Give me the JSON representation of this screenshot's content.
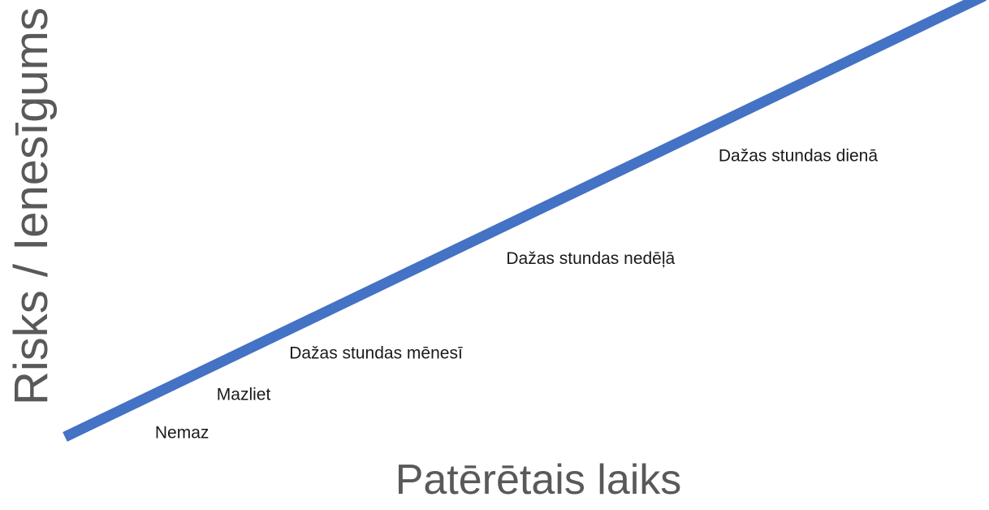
{
  "chart_data": {
    "type": "line",
    "title": "",
    "xlabel": "Patērētais laiks",
    "ylabel": "Risks / Ienesīgums",
    "xlim": [
      0,
      100
    ],
    "ylim": [
      0,
      100
    ],
    "grid": false,
    "series": [
      {
        "values": [
          {
            "x": 0,
            "y": 0
          },
          {
            "x": 100,
            "y": 100
          }
        ],
        "color": "#4472C4"
      }
    ],
    "annotations": [
      {
        "text": "Nemaz",
        "x": 9.8,
        "y": -0.3
      },
      {
        "text": "Mazliet",
        "x": 16.5,
        "y": 8.4
      },
      {
        "text": "Dažas stundas mēnesī",
        "x": 24.4,
        "y": 17.8
      },
      {
        "text": "Dažas stundas nedēļā",
        "x": 48.0,
        "y": 39.2
      },
      {
        "text": "Dažas stundas dienā",
        "x": 71.1,
        "y": 62.5
      }
    ]
  }
}
